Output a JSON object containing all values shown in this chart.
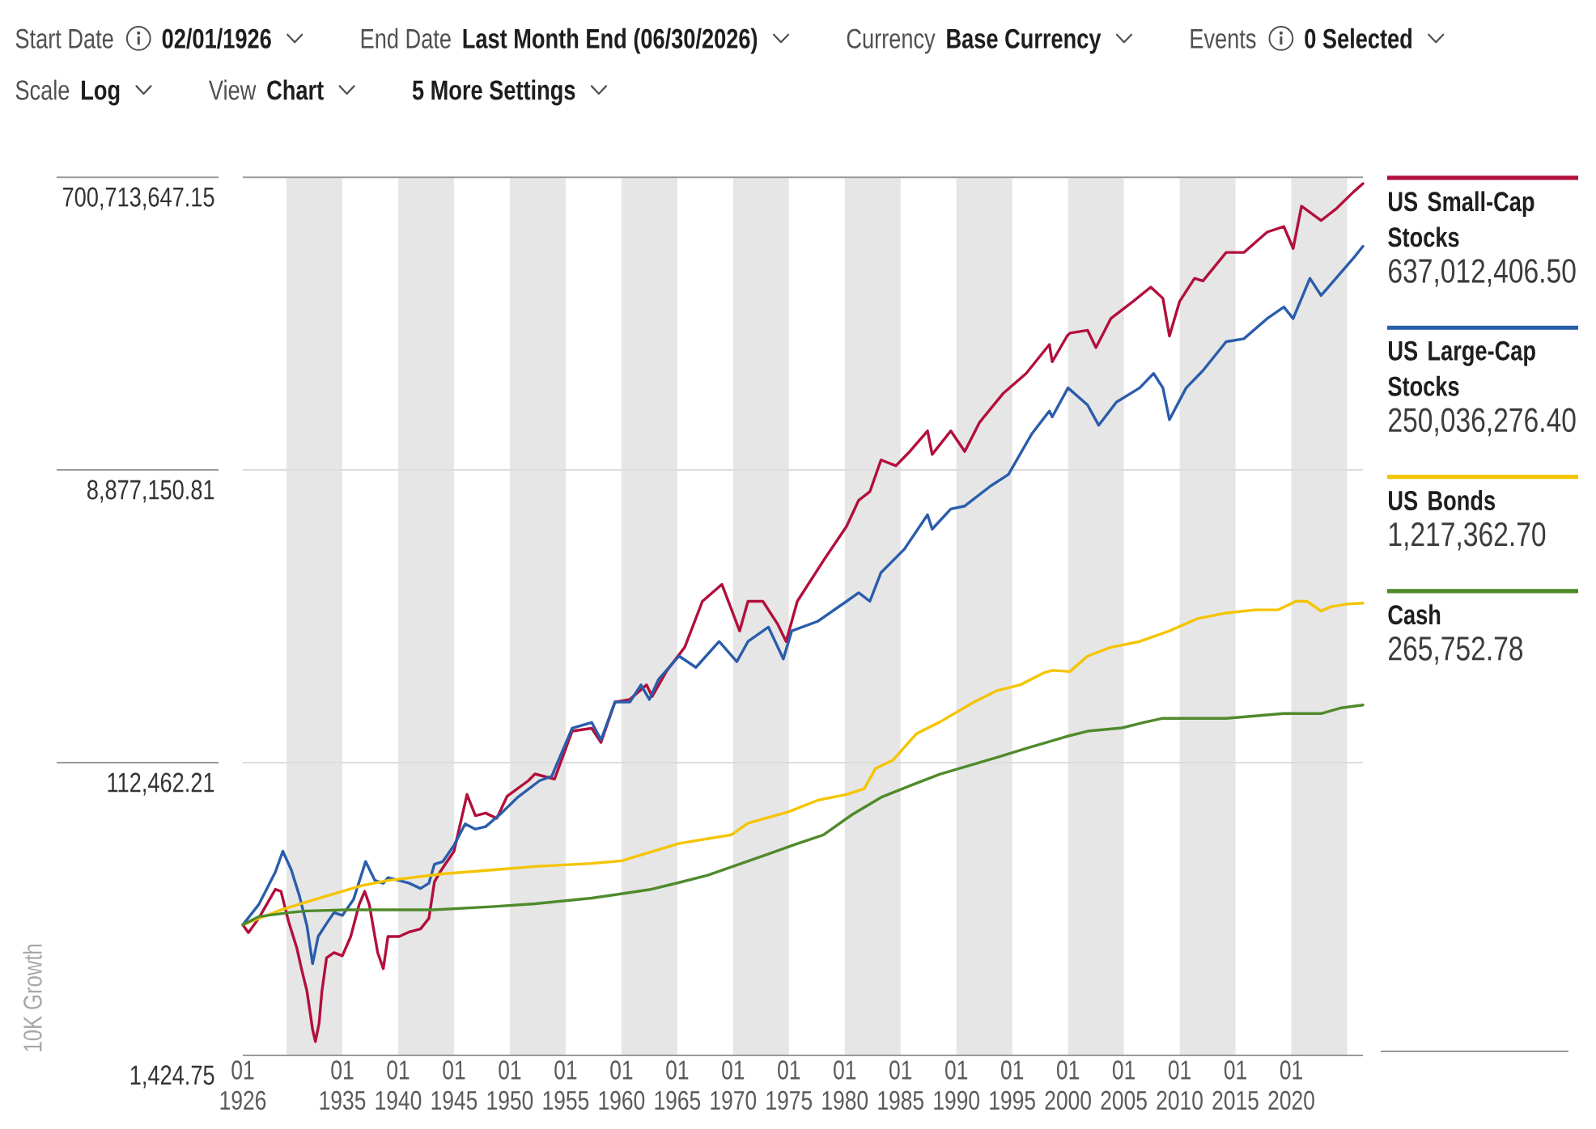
{
  "chart_data": {
    "type": "line",
    "ylabel": "10K Growth",
    "annotations": [
      "Start Date",
      "02/01/1926",
      "End Date",
      "Last Month End (06/30/2026)",
      "Currency",
      "Base Currency",
      "Events",
      "0 Selected",
      "Scale",
      "Log",
      "View",
      "Chart",
      "5 More Settings",
      "637,012,406.50",
      "250,036,276.40",
      "1,217,362.70",
      "265,752.78"
    ],
    "xlim": [
      "1926-02",
      "2026-06"
    ],
    "xticks": [
      {
        "value": "1926-02",
        "label": "01 1926"
      },
      {
        "value": "1935-01",
        "label": "01 1935"
      },
      {
        "value": "1940-01",
        "label": "01 1940"
      },
      {
        "value": "1945-01",
        "label": "01 1945"
      },
      {
        "value": "1950-01",
        "label": "01 1950"
      },
      {
        "value": "1955-01",
        "label": "01 1955"
      },
      {
        "value": "1960-01",
        "label": "01 1960"
      },
      {
        "value": "1965-01",
        "label": "01 1965"
      },
      {
        "value": "1970-01",
        "label": "01 1970"
      },
      {
        "value": "1975-01",
        "label": "01 1975"
      },
      {
        "value": "1980-01",
        "label": "01 1980"
      },
      {
        "value": "1985-01",
        "label": "01 1985"
      },
      {
        "value": "1990-01",
        "label": "01 1990"
      },
      {
        "value": "1995-01",
        "label": "01 1995"
      },
      {
        "value": "2000-01",
        "label": "01 2000"
      },
      {
        "value": "2005-01",
        "label": "01 2005"
      },
      {
        "value": "2010-01",
        "label": "01 2010"
      },
      {
        "value": "2015-01",
        "label": "01 2015"
      },
      {
        "value": "2020-01",
        "label": "01 2020"
      }
    ],
    "ylim": [
      1424.75,
      700713647.15
    ],
    "yticks": [
      {
        "value": 1424.75,
        "label": "1,424.75"
      },
      {
        "value": 112462.21,
        "label": "112,462.21"
      },
      {
        "value": 8877150.81,
        "label": "8,877,150.81"
      },
      {
        "value": 700713647.15,
        "label": "700,713,647.15"
      }
    ],
    "log": true,
    "grid": "y",
    "legend": "right",
    "bands": [
      {
        "axis": "x",
        "from": "1930-01",
        "to": "1935-01",
        "color": "#e6e6e6"
      },
      {
        "axis": "x",
        "from": "1940-01",
        "to": "1945-01",
        "color": "#e6e6e6"
      },
      {
        "axis": "x",
        "from": "1950-01",
        "to": "1955-01",
        "color": "#e6e6e6"
      },
      {
        "axis": "x",
        "from": "1960-01",
        "to": "1965-01",
        "color": "#e6e6e6"
      },
      {
        "axis": "x",
        "from": "1970-01",
        "to": "1975-01",
        "color": "#e6e6e6"
      },
      {
        "axis": "x",
        "from": "1980-01",
        "to": "1985-01",
        "color": "#e6e6e6"
      },
      {
        "axis": "x",
        "from": "1990-01",
        "to": "1995-01",
        "color": "#e6e6e6"
      },
      {
        "axis": "x",
        "from": "2000-01",
        "to": "2005-01",
        "color": "#e6e6e6"
      },
      {
        "axis": "x",
        "from": "2010-01",
        "to": "2015-01",
        "color": "#e6e6e6"
      },
      {
        "axis": "x",
        "from": "2020-01",
        "to": "2025-01",
        "color": "#e6e6e6"
      }
    ],
    "series": [
      {
        "name": "US Small-Cap Stocks",
        "color": "#b30f3c",
        "x": [
          "1926-02",
          "1926-08",
          "1927-07",
          "1929-01",
          "1929-07",
          "1930-03",
          "1930-12",
          "1931-05",
          "1931-11",
          "1932-05",
          "1932-08",
          "1932-12",
          "1933-03",
          "1933-08",
          "1934-04",
          "1935-01",
          "1935-10",
          "1936-07",
          "1937-01",
          "1937-06",
          "1938-03",
          "1938-09",
          "1939-02",
          "1940-02",
          "1941-01",
          "1942-01",
          "1942-10",
          "1943-04",
          "1943-10",
          "1945-01",
          "1946-03",
          "1946-12",
          "1947-11",
          "1948-11",
          "1949-10",
          "1951-09",
          "1952-04",
          "1954-01",
          "1955-08",
          "1957-05",
          "1958-03",
          "1959-06",
          "1960-10",
          "1962-04",
          "1962-10",
          "1964-02",
          "1965-09",
          "1967-04",
          "1969-01",
          "1970-08",
          "1971-05",
          "1972-09",
          "1974-01",
          "1974-10",
          "1975-10",
          "1978-02",
          "1980-03",
          "1981-04",
          "1982-04",
          "1983-04",
          "1984-08",
          "1985-11",
          "1987-06",
          "1987-11",
          "1989-07",
          "1990-10",
          "1992-02",
          "1994-03",
          "1996-04",
          "1998-05",
          "1998-08",
          "1999-12",
          "2000-03",
          "2001-10",
          "2002-07",
          "2003-11",
          "2005-11",
          "2007-06",
          "2008-07",
          "2009-02",
          "2010-01",
          "2011-05",
          "2012-02",
          "2014-03",
          "2015-10",
          "2017-11",
          "2019-05",
          "2020-03",
          "2020-12",
          "2022-09",
          "2024-01",
          "2025-08",
          "2026-06"
        ],
        "values": [
          10000,
          8900,
          11000,
          17000,
          16500,
          10600,
          7100,
          5200,
          3700,
          2100,
          1750,
          2300,
          3700,
          6100,
          6600,
          6300,
          8400,
          13500,
          16500,
          13500,
          6600,
          5200,
          8400,
          8400,
          9000,
          9400,
          11000,
          19000,
          22000,
          30000,
          70000,
          51000,
          53000,
          49000,
          68000,
          86000,
          95000,
          88000,
          180000,
          188000,
          152000,
          278000,
          289000,
          359000,
          302000,
          446000,
          629000,
          1250000,
          1610000,
          803000,
          1250000,
          1250000,
          887000,
          686000,
          1250000,
          2290000,
          3830000,
          5650000,
          6420000,
          10300000,
          9460000,
          11700000,
          15900000,
          11200000,
          15900000,
          11700000,
          18100000,
          27700000,
          37500000,
          57700000,
          44600000,
          65500000,
          68400000,
          71400000,
          55200000,
          85000000,
          110000000,
          136000000,
          115000000,
          65500000,
          110000000,
          155000000,
          149000000,
          228000000,
          228000000,
          309000000,
          336000000,
          242000000,
          455000000,
          367000000,
          436000000,
          564000000,
          637012406.5
        ]
      },
      {
        "name": "US Large-Cap Stocks",
        "color": "#2a5dab",
        "x": [
          "1926-02",
          "1927-07",
          "1929-01",
          "1929-09",
          "1930-06",
          "1931-03",
          "1931-11",
          "1932-05",
          "1932-11",
          "1933-08",
          "1934-04",
          "1935-01",
          "1936-01",
          "1937-02",
          "1937-12",
          "1938-09",
          "1939-02",
          "1940-02",
          "1941-01",
          "1942-01",
          "1942-10",
          "1943-04",
          "1944-01",
          "1945-01",
          "1946-01",
          "1946-12",
          "1947-11",
          "1949-04",
          "1950-10",
          "1952-09",
          "1953-10",
          "1955-08",
          "1957-05",
          "1958-03",
          "1959-06",
          "1960-10",
          "1961-10",
          "1962-07",
          "1963-05",
          "1965-03",
          "1966-09",
          "1968-10",
          "1970-05",
          "1971-05",
          "1973-03",
          "1974-07",
          "1975-04",
          "1977-08",
          "1980-03",
          "1981-04",
          "1982-04",
          "1983-04",
          "1985-05",
          "1987-06",
          "1987-11",
          "1989-07",
          "1990-10",
          "1993-02",
          "1994-09",
          "1996-10",
          "1998-05",
          "1998-08",
          "2000-01",
          "2001-10",
          "2002-10",
          "2004-05",
          "2006-06",
          "2007-09",
          "2008-07",
          "2009-02",
          "2010-08",
          "2012-02",
          "2014-03",
          "2015-10",
          "2017-11",
          "2019-05",
          "2020-03",
          "2021-09",
          "2022-09",
          "2024-01",
          "2025-08",
          "2026-06"
        ],
        "values": [
          10000,
          13500,
          22000,
          30000,
          22800,
          15300,
          9800,
          5600,
          8400,
          10200,
          12000,
          11500,
          14600,
          25700,
          19400,
          18600,
          20200,
          19400,
          18600,
          17200,
          18600,
          24700,
          25700,
          32800,
          45100,
          41700,
          43300,
          53000,
          67500,
          86000,
          91700,
          188000,
          205000,
          158000,
          278000,
          278000,
          359000,
          289000,
          391000,
          552000,
          466000,
          686000,
          508000,
          686000,
          850000,
          529000,
          803000,
          927000,
          1250000,
          1420000,
          1250000,
          1920000,
          2720000,
          4550000,
          3670000,
          4960000,
          5180000,
          7000000,
          8310000,
          15200000,
          21400000,
          19600000,
          30200000,
          23400000,
          17300000,
          24400000,
          30200000,
          37500000,
          30200000,
          18800000,
          30200000,
          39100000,
          60200000,
          62900000,
          85000000,
          101000000,
          85000000,
          155000000,
          120000000,
          155000000,
          210000000,
          250036276.4
        ]
      },
      {
        "name": "US Bonds",
        "color": "#f5c400",
        "x": [
          "1926-02",
          "1929-07",
          "1931-11",
          "1934-04",
          "1936-09",
          "1939-02",
          "1944-01",
          "1948-11",
          "1952-04",
          "1957-05",
          "1960-01",
          "1965-03",
          "1969-11",
          "1971-05",
          "1975-01",
          "1977-08",
          "1980-03",
          "1981-10",
          "1982-10",
          "1984-05",
          "1986-06",
          "1988-07",
          "1991-08",
          "1993-09",
          "1995-10",
          "1997-10",
          "1998-08",
          "2000-03",
          "2001-10",
          "2003-11",
          "2006-06",
          "2009-02",
          "2011-08",
          "2014-03",
          "2016-10",
          "2018-11",
          "2020-06",
          "2021-06",
          "2022-09",
          "2023-07",
          "2025-01",
          "2026-06"
        ],
        "values": [
          10000,
          12500,
          14100,
          15900,
          17900,
          19400,
          21400,
          22800,
          23900,
          25000,
          26000,
          33700,
          38300,
          45600,
          54100,
          64200,
          70000,
          76300,
          103000,
          117000,
          173000,
          206000,
          278000,
          330000,
          360000,
          427000,
          446000,
          438000,
          552000,
          629000,
          686000,
          803000,
          965000,
          1050000,
          1100000,
          1100000,
          1250000,
          1250000,
          1080000,
          1150000,
          1200000,
          1217362.7
        ]
      },
      {
        "name": "Cash",
        "color": "#4f8a2b",
        "x": [
          "1926-02",
          "1927-07",
          "1930-04",
          "1931-11",
          "1935-06",
          "1943-03",
          "1948-05",
          "1952-04",
          "1957-05",
          "1962-07",
          "1965-03",
          "1967-10",
          "1972-12",
          "1975-07",
          "1978-02",
          "1980-09",
          "1983-04",
          "1985-11",
          "1988-07",
          "1993-09",
          "1996-04",
          "1999-11",
          "2001-10",
          "2004-11",
          "2006-12",
          "2008-07",
          "2014-03",
          "2019-05",
          "2022-09",
          "2024-07",
          "2026-06"
        ],
        "values": [
          10000,
          11300,
          12000,
          12300,
          12500,
          12500,
          13100,
          13700,
          14900,
          16900,
          18800,
          21000,
          28400,
          33100,
          38300,
          51800,
          67000,
          79700,
          94600,
          122000,
          139000,
          166000,
          180000,
          189000,
          206000,
          218000,
          218000,
          234000,
          234000,
          255000,
          265752.78
        ]
      }
    ]
  }
}
